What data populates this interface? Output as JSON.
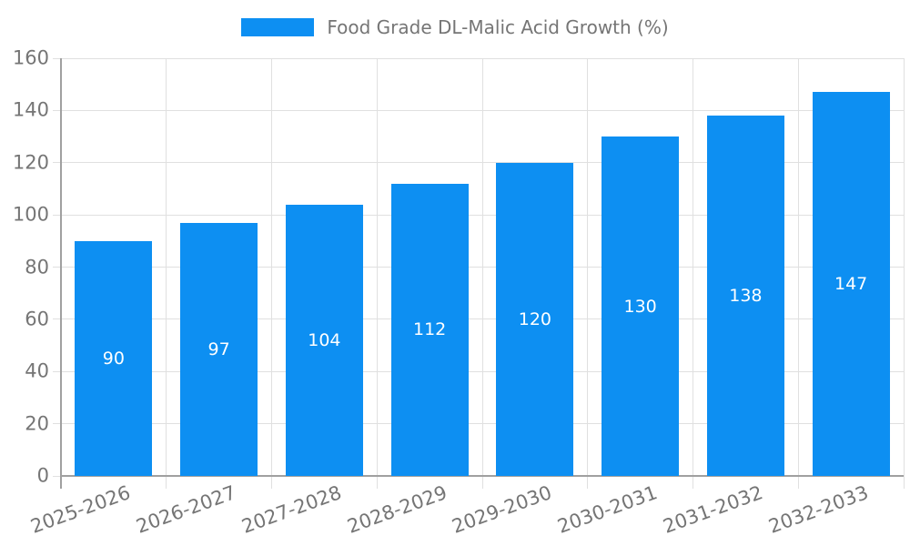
{
  "chart_data": {
    "type": "bar",
    "title": "Food Grade DL-Malic Acid Growth (%)",
    "series": [
      {
        "name": "Food Grade DL-Malic Acid Growth (%)",
        "values": [
          90,
          97,
          104,
          112,
          120,
          130,
          138,
          147
        ]
      }
    ],
    "categories": [
      "2025-2026",
      "2026-2027",
      "2027-2028",
      "2028-2029",
      "2029-2030",
      "2030-2031",
      "2031-2032",
      "2032-2033"
    ],
    "value_labels": [
      "90",
      "97",
      "104",
      "112",
      "120",
      "130",
      "138",
      "147"
    ],
    "xlabel": "",
    "ylabel": "",
    "ylim": [
      0,
      160
    ],
    "yticks": [
      "0",
      "20",
      "40",
      "60",
      "80",
      "100",
      "120",
      "140",
      "160"
    ],
    "grid": true,
    "legend_position": "top-center",
    "xtick_rotation_deg": -20,
    "colors": {
      "bar": "#0d8ff2",
      "value_label": "#ffffff",
      "axis_label": "#757575",
      "grid": "#e0e0e0",
      "axis_line": "#a0a0a0",
      "background": "#ffffff"
    }
  }
}
